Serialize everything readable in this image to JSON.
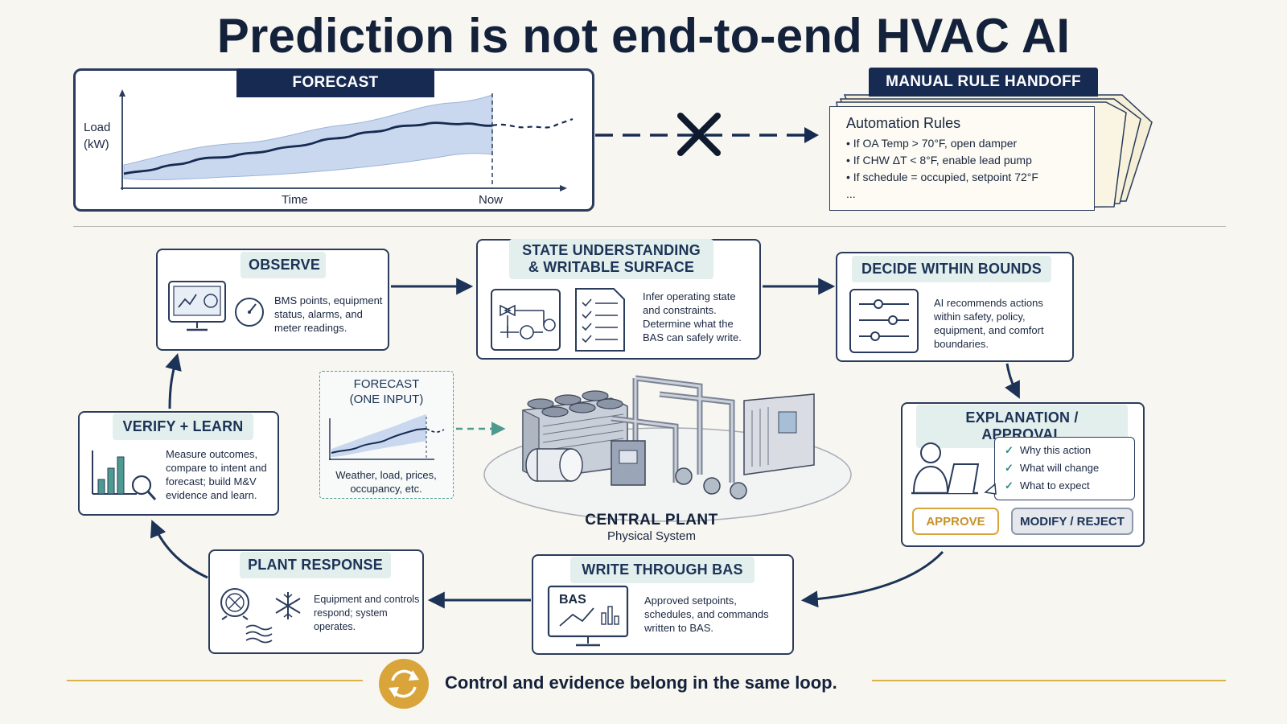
{
  "title": "Prediction is not end-to-end HVAC AI",
  "forecast": {
    "header": "FORECAST",
    "y_label": "Load\n(kW)",
    "x_label": "Time",
    "now_label": "Now"
  },
  "manual_handoff": {
    "header": "MANUAL RULE HANDOFF",
    "rules_title": "Automation Rules",
    "rules": [
      "• If OA Temp > 70°F, open damper",
      "• If CHW ΔT < 8°F, enable lead pump",
      "• If schedule = occupied, setpoint 72°F",
      "..."
    ]
  },
  "observe": {
    "label": "OBSERVE",
    "text": "BMS points, equipment status, alarms, and meter readings."
  },
  "state": {
    "label_line1": "STATE UNDERSTANDING",
    "label_line2": "& WRITABLE SURFACE",
    "text": "Infer operating state and constraints. Determine what the BAS can safely write."
  },
  "decide": {
    "label": "DECIDE WITHIN BOUNDS",
    "text": "AI recommends actions within safety, policy, equipment, and comfort boundaries."
  },
  "explanation": {
    "label": "EXPLANATION / APPROVAL",
    "checks": [
      "Why this action",
      "What will change",
      "What to expect"
    ],
    "check_mark": "✓",
    "approve": "APPROVE",
    "modify": "MODIFY / REJECT"
  },
  "write": {
    "label": "WRITE THROUGH BAS",
    "screen_label": "BAS",
    "text": "Approved setpoints, schedules, and commands written to BAS."
  },
  "plant_response": {
    "label": "PLANT RESPONSE",
    "text": "Equipment and controls respond; system operates."
  },
  "verify": {
    "label": "VERIFY + LEARN",
    "text": "Measure outcomes, compare to intent and forecast; build M&V evidence and learn."
  },
  "forecast_input": {
    "label_line1": "FORECAST",
    "label_line2": "(ONE INPUT)",
    "text": "Weather, load, prices, occupancy, etc."
  },
  "central_plant": {
    "title": "CENTRAL PLANT",
    "subtitle": "Physical System"
  },
  "footer": {
    "text": "Control and evidence belong in the same loop."
  },
  "colors": {
    "navy": "#172b52",
    "teal_tag": "#e3efec",
    "gold": "#d9a53a",
    "band": "#c9d8ee"
  }
}
